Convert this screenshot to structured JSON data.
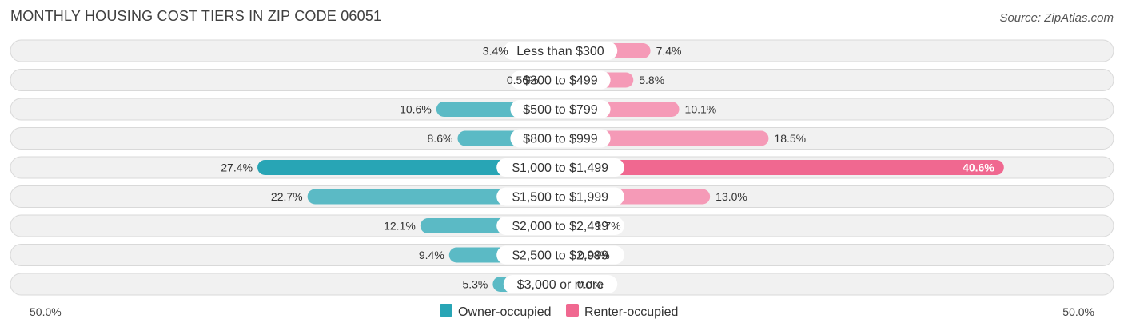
{
  "header": {
    "title": "MONTHLY HOUSING COST TIERS IN ZIP CODE 06051",
    "source": "Source: ZipAtlas.com"
  },
  "chart_data": {
    "type": "bar",
    "orientation": "horizontal-diverging",
    "categories": [
      "Less than $300",
      "$300 to $499",
      "$500 to $799",
      "$800 to $999",
      "$1,000 to $1,499",
      "$1,500 to $1,999",
      "$2,000 to $2,499",
      "$2,500 to $2,999",
      "$3,000 or more"
    ],
    "series": [
      {
        "name": "Owner-occupied",
        "values": [
          3.4,
          0.56,
          10.6,
          8.6,
          27.4,
          22.7,
          12.1,
          9.4,
          5.3
        ],
        "labels": [
          "3.4%",
          "0.56%",
          "10.6%",
          "8.6%",
          "27.4%",
          "22.7%",
          "12.1%",
          "9.4%",
          "5.3%"
        ],
        "color": "#5bbac5",
        "highlight_color": "#28a5b5"
      },
      {
        "name": "Renter-occupied",
        "values": [
          7.4,
          5.8,
          10.1,
          18.5,
          40.6,
          13.0,
          1.7,
          0.08,
          0.0
        ],
        "labels": [
          "7.4%",
          "5.8%",
          "10.1%",
          "18.5%",
          "40.6%",
          "13.0%",
          "1.7%",
          "0.08%",
          "0.0%"
        ],
        "color": "#f59ab7",
        "highlight_color": "#f06890"
      }
    ],
    "axis": {
      "left_label": "50.0%",
      "right_label": "50.0%",
      "max": 50
    },
    "legend_position": "bottom-center",
    "highlight_index": 4
  }
}
